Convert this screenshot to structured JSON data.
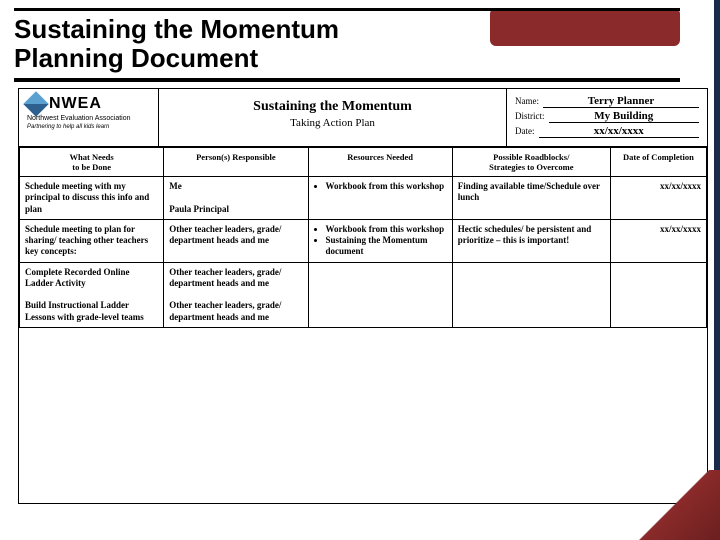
{
  "slide": {
    "title_line1": "Sustaining the Momentum",
    "title_line2": "Planning Document"
  },
  "logo": {
    "text": "NWEA",
    "sub": "Northwest Evaluation Association",
    "tag": "Partnering to help all kids learn"
  },
  "doc_title": {
    "line1": "Sustaining the Momentum",
    "line2": "Taking Action Plan"
  },
  "meta": {
    "name_label": "Name:",
    "name_value": "Terry Planner",
    "district_label": "District:",
    "district_value": "My Building",
    "date_label": "Date:",
    "date_value": "xx/xx/xxxx"
  },
  "columns": {
    "c0": "What Needs\nto be Done",
    "c1": "Person(s) Responsible",
    "c2": "Resources Needed",
    "c3": "Possible Roadblocks/\nStrategies to Overcome",
    "c4": "Date of Completion"
  },
  "col_widths": {
    "c0": "21%",
    "c1": "21%",
    "c2": "21%",
    "c3": "23%",
    "c4": "14%"
  },
  "rows": [
    {
      "task": "Schedule meeting with my principal to discuss this info and plan",
      "persons": "Me\n\nPaula Principal",
      "resources": [
        "Workbook from this workshop"
      ],
      "roadblocks": "Finding available time/Schedule over lunch",
      "date": "xx/xx/xxxx"
    },
    {
      "task": "Schedule meeting to plan for sharing/ teaching other teachers key concepts:",
      "persons": "Other teacher leaders, grade/ department heads and me",
      "resources": [
        "Workbook from this workshop",
        "Sustaining the Momentum document"
      ],
      "roadblocks": "Hectic schedules/ be persistent and prioritize – this is important!",
      "date": "xx/xx/xxxx"
    },
    {
      "task": "Complete Recorded Online Ladder Activity",
      "persons": "Other teacher leaders, grade/ department heads and me",
      "resources": [],
      "roadblocks": "",
      "date": ""
    },
    {
      "task": "Build Instructional Ladder Lessons with grade-level teams",
      "persons": "Other teacher leaders, grade/ department heads and me",
      "resources": [],
      "roadblocks": "",
      "date": ""
    }
  ],
  "colors": {
    "accent": "#8b2a2a",
    "border": "#000000",
    "background": "#ffffff"
  }
}
